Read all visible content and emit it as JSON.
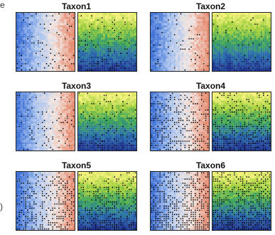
{
  "chart_data": {
    "type": "heatmap",
    "layout": {
      "rows": 3,
      "columns": 2
    },
    "panels": [
      {
        "title": "Taxon1",
        "point_density": "low"
      },
      {
        "title": "Taxon2",
        "point_density": "very low"
      },
      {
        "title": "Taxon3",
        "point_density": "low"
      },
      {
        "title": "Taxon4",
        "point_density": "high"
      },
      {
        "title": "Taxon5",
        "point_density": "high"
      },
      {
        "title": "Taxon6",
        "point_density": "very high"
      }
    ],
    "left_map": {
      "colormap": "diverging blue-white-red",
      "gradient_direction": "left-to-right",
      "colors": [
        "#3b6fd6",
        "#a9c3ee",
        "#f2e6e1",
        "#e58a6f"
      ]
    },
    "right_map": {
      "colormap": "viridis-like yellow-green-blue",
      "gradient_direction": "top-to-bottom",
      "colors": [
        "#f4f17a",
        "#a8d23c",
        "#3aa35a",
        "#2a6fb0",
        "#1b2f8a"
      ]
    },
    "points": {
      "marker": "square dot",
      "color": "#000000"
    },
    "xlabel": "",
    "ylabel": "",
    "grid": false
  }
}
